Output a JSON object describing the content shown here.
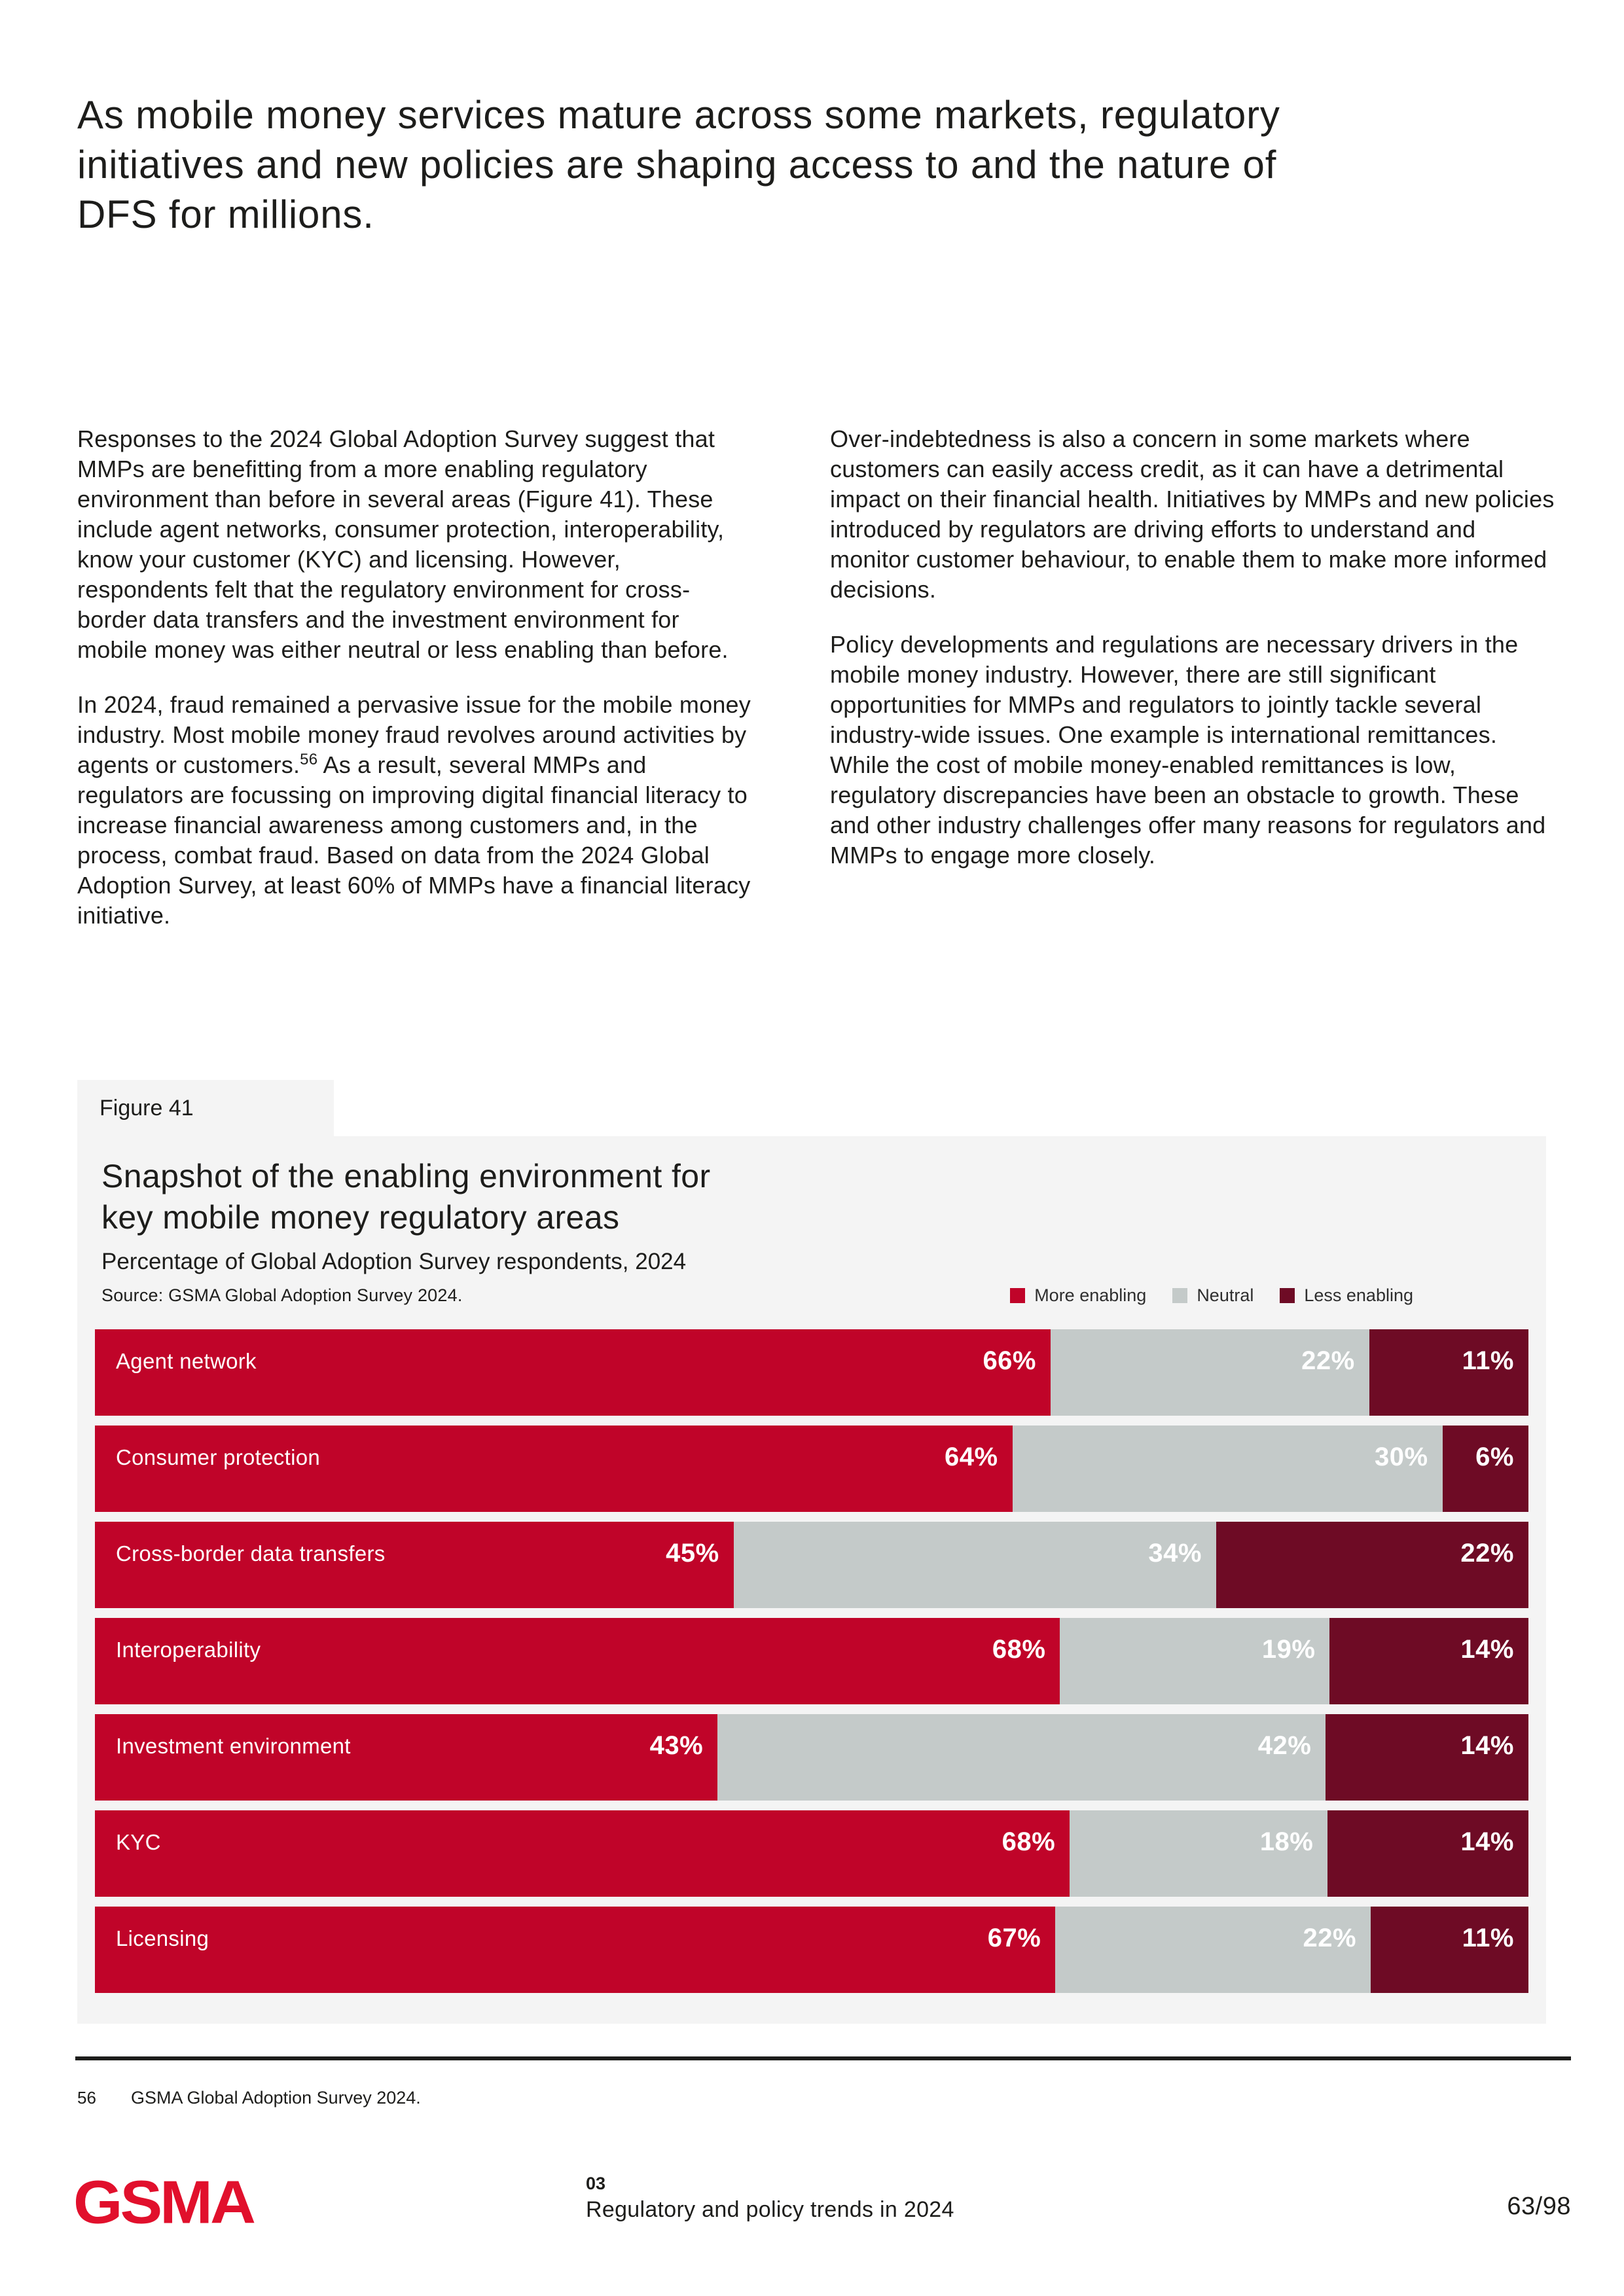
{
  "heading_lines": [
    "As mobile money services mature across some markets, regulatory",
    "initiatives and new policies are shaping access to and the nature of",
    "DFS for millions."
  ],
  "columns": {
    "left": {
      "para1": "Responses to the 2024 Global Adoption Survey suggest that MMPs are benefitting from a more enabling regulatory environment than before in several areas (Figure 41). These include agent networks, consumer protection, interoperability, know your customer (KYC) and licensing. However, respondents felt that the regulatory environment for cross-border data transfers and the investment environment for mobile money was either neutral or less enabling than before.",
      "para2_before": "In 2024, fraud remained a pervasive issue for the mobile money industry. Most mobile money fraud revolves around activities by agents or customers.",
      "para2_sup": "56",
      "para2_after": " As a result, several MMPs and regulators are focussing on improving digital financial literacy to increase financial awareness among customers and, in the process, combat fraud. Based on data from the 2024 Global Adoption Survey, at least 60% of MMPs have a financial literacy initiative."
    },
    "right": {
      "para1": "Over-indebtedness is also a concern in some markets where customers can easily access credit, as it can have a detrimental impact on their financial health. Initiatives by MMPs and new policies introduced by regulators are driving efforts to understand and monitor customer behaviour, to enable them to make more informed decisions.",
      "para2": "Policy developments and regulations are necessary drivers in the mobile money industry. However, there are still significant opportunities for MMPs and regulators to jointly tackle several industry-wide issues. One example is international remittances. While the cost of mobile money-enabled remittances is low, regulatory discrepancies have been an obstacle to growth. These and other industry challenges offer many reasons for regulators and MMPs to engage more closely."
    }
  },
  "figure": {
    "label": "Figure 41",
    "title_lines": [
      "Snapshot of the enabling environment for",
      "key mobile money regulatory areas"
    ],
    "subtitle": "Percentage of Global Adoption Survey respondents, 2024",
    "source": "Source: GSMA Global Adoption Survey 2024.",
    "colors": [
      "#c00429",
      "#c4cac9",
      "#6e0b25"
    ],
    "legend": [
      {
        "label": "More enabling",
        "color": "#c00429"
      },
      {
        "label": "Neutral",
        "color": "#c4cac9"
      },
      {
        "label": "Less enabling",
        "color": "#6e0b25"
      }
    ],
    "chart_data": {
      "type": "bar",
      "stacked": true,
      "orientation": "horizontal",
      "unit": "%",
      "title": "Snapshot of the enabling environment for key mobile money regulatory areas",
      "subtitle": "Percentage of Global Adoption Survey respondents, 2024",
      "categories": [
        "Agent network",
        "Consumer protection",
        "Cross-border data transfers",
        "Interoperability",
        "Investment environment",
        "KYC",
        "Licensing"
      ],
      "series": [
        {
          "name": "More enabling",
          "values": [
            66,
            64,
            45,
            68,
            43,
            68,
            67
          ]
        },
        {
          "name": "Neutral",
          "values": [
            22,
            30,
            34,
            19,
            42,
            18,
            22
          ]
        },
        {
          "name": "Less enabling",
          "values": [
            11,
            6,
            22,
            14,
            14,
            14,
            11
          ]
        }
      ],
      "legend_position": "top-right",
      "grid": false
    }
  },
  "footnote": {
    "number": "56",
    "text": "GSMA Global Adoption Survey 2024."
  },
  "footer": {
    "logo": "GSMA",
    "logo_color": "#e1102c",
    "chapter_number": "03",
    "chapter_title": "Regulatory and policy trends in 2024",
    "page": "63/98"
  }
}
